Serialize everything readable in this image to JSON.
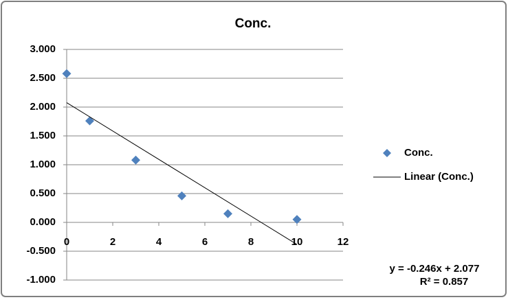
{
  "chart_data": {
    "type": "scatter",
    "title": "Conc.",
    "series": [
      {
        "name": "Conc.",
        "color": "#4f81bd",
        "x": [
          0,
          1,
          3,
          5,
          7,
          10
        ],
        "values": [
          2.58,
          1.76,
          1.08,
          0.46,
          0.15,
          0.05
        ]
      }
    ],
    "trendline": {
      "name": "Linear (Conc.)",
      "color": "#000000",
      "slope": -0.246,
      "intercept": 2.077,
      "equation": "y = -0.246x + 2.077",
      "r2_label": "R² = 0.857"
    },
    "xlim": [
      0,
      12
    ],
    "xticks": [
      0,
      2,
      4,
      6,
      8,
      10,
      12
    ],
    "ylim": [
      -1,
      3
    ],
    "yticks": [
      {
        "value": -1,
        "label": "-1.000"
      },
      {
        "value": -0.5,
        "label": "-0.500"
      },
      {
        "value": 0,
        "label": "0.000"
      },
      {
        "value": 0.5,
        "label": "0.500"
      },
      {
        "value": 1,
        "label": "1.000"
      },
      {
        "value": 1.5,
        "label": "1.500"
      },
      {
        "value": 2,
        "label": "2.000"
      },
      {
        "value": 2.5,
        "label": "2.500"
      },
      {
        "value": 3,
        "label": "3.000"
      }
    ],
    "grid": true,
    "legend": "right"
  }
}
